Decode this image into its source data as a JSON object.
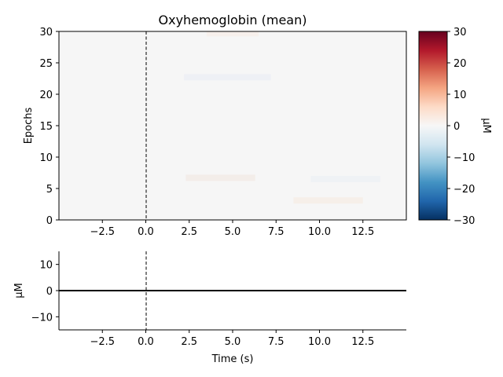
{
  "chart_data": [
    {
      "type": "heatmap",
      "title": "Oxyhemoglobin (mean)",
      "xlabel": "",
      "ylabel": "Epochs",
      "xlim": [
        -5,
        15
      ],
      "ylim": [
        0,
        30
      ],
      "xticks": [
        -2.5,
        0.0,
        2.5,
        5.0,
        7.5,
        10.0,
        12.5
      ],
      "xtick_labels": [
        "−2.5",
        "0.0",
        "2.5",
        "5.0",
        "7.5",
        "10.0",
        "12.5"
      ],
      "yticks": [
        0,
        5,
        10,
        15,
        20,
        25,
        30
      ],
      "ytick_labels": [
        "0",
        "5",
        "10",
        "15",
        "20",
        "25",
        "30"
      ],
      "vline_x": 0,
      "colormap": "RdBu_r",
      "colorbar": {
        "label": "µM",
        "range": [
          -30,
          30
        ],
        "ticks": [
          -30,
          -20,
          -10,
          0,
          10,
          20,
          30
        ],
        "tick_labels": [
          "−30",
          "−20",
          "−10",
          "0",
          "10",
          "20",
          "30"
        ]
      },
      "z_summary": "values near 0 µM across all epochs and times"
    },
    {
      "type": "line",
      "title": "",
      "xlabel": "Time (s)",
      "ylabel": "µM",
      "xlim": [
        -5,
        15
      ],
      "ylim": [
        -15,
        15
      ],
      "xticks": [
        -2.5,
        0.0,
        2.5,
        5.0,
        7.5,
        10.0,
        12.5
      ],
      "xtick_labels": [
        "−2.5",
        "0.0",
        "2.5",
        "5.0",
        "7.5",
        "10.0",
        "12.5"
      ],
      "yticks": [
        -10,
        0,
        10
      ],
      "ytick_labels": [
        "−10",
        "0",
        "10"
      ],
      "vline_x": 0,
      "series": [
        {
          "x": [
            -5,
            0,
            5,
            10,
            15
          ],
          "values": [
            0,
            0,
            0,
            0,
            0
          ],
          "color": "#000000"
        }
      ]
    }
  ]
}
